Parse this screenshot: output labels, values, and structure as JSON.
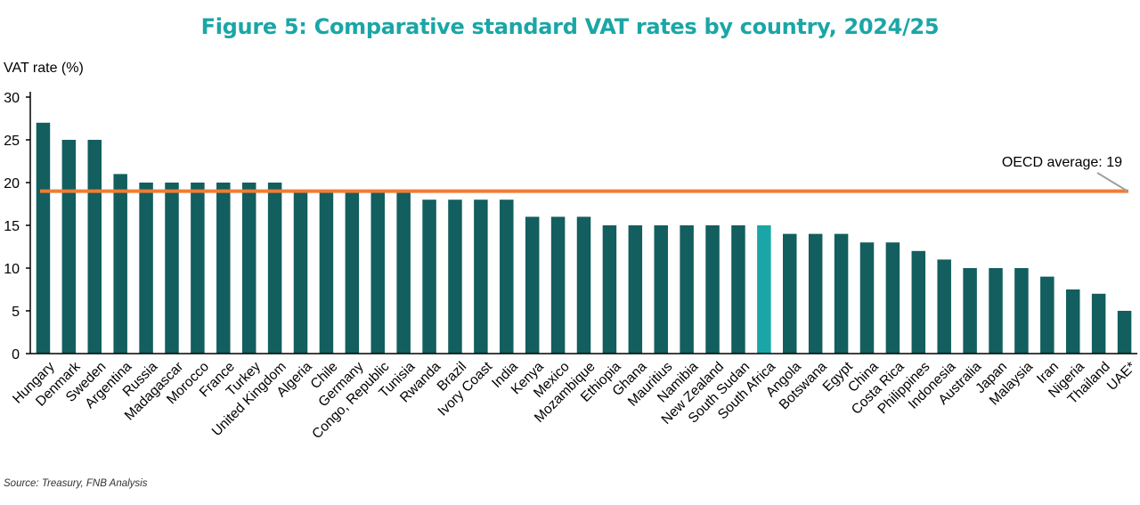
{
  "chart_data": {
    "type": "bar",
    "title": "Figure 5: Comparative standard VAT rates by country, 2024/25",
    "ylabel": "VAT rate (%)",
    "xlabel": "",
    "ylim": [
      0,
      30
    ],
    "yticks": [
      0,
      5,
      10,
      15,
      20,
      25,
      30
    ],
    "grid": false,
    "categories": [
      "Hungary",
      "Denmark",
      "Sweden",
      "Argentina",
      "Russia",
      "Madagascar",
      "Morocco",
      "France",
      "Turkey",
      "United Kingdom",
      "Algeria",
      "Chile",
      "Germany",
      "Congo, Republic",
      "Tunisia",
      "Rwanda",
      "Brazil",
      "Ivory Coast",
      "India",
      "Kenya",
      "Mexico",
      "Mozambique",
      "Ethiopia",
      "Ghana",
      "Mauritius",
      "Namibia",
      "New Zealand",
      "South Sudan",
      "South Africa",
      "Angola",
      "Botswana",
      "Egypt",
      "China",
      "Costa Rica",
      "Philippines",
      "Indonesia",
      "Australia",
      "Japan",
      "Malaysia",
      "Iran",
      "Nigeria",
      "Thailand",
      "UAE*"
    ],
    "values": [
      27,
      25,
      25,
      21,
      20,
      20,
      20,
      20,
      20,
      20,
      19,
      19,
      19,
      19,
      19,
      18,
      18,
      18,
      18,
      16,
      16,
      16,
      15,
      15,
      15,
      15,
      15,
      15,
      15,
      14,
      14,
      14,
      13,
      13,
      12,
      11,
      10,
      10,
      10,
      9,
      7.5,
      7,
      5
    ],
    "highlight_category": "South Africa",
    "reference_line": {
      "label": "OECD average: 19",
      "value": 19
    },
    "colors": {
      "bar": "#135e5e",
      "highlight": "#1aa6a6",
      "reference_line": "#ef7d33",
      "title": "#1aa6a6",
      "leader": "#a0a0a0"
    }
  },
  "source": "Source: Treasury, FNB Analysis"
}
